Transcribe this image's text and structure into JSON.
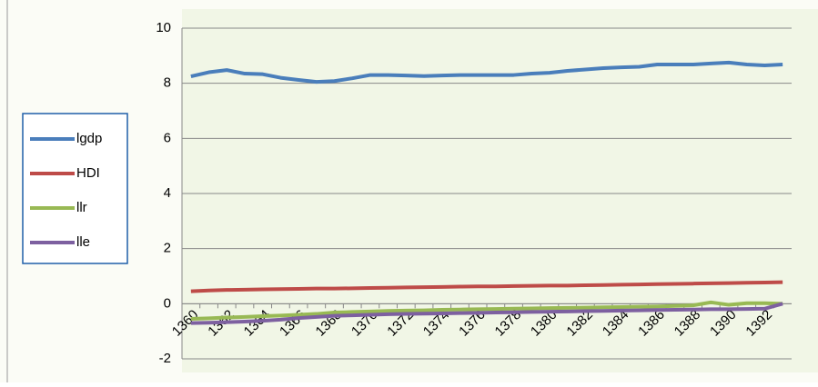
{
  "chart_data": {
    "type": "line",
    "categories": [
      "1360",
      null,
      "1362",
      null,
      "1364",
      null,
      "1366",
      null,
      "1368",
      null,
      "1370",
      null,
      "1372",
      null,
      "1374",
      null,
      "1376",
      null,
      "1378",
      null,
      "1380",
      null,
      "1382",
      null,
      "1384",
      null,
      "1386",
      null,
      "1388",
      null,
      "1390",
      null,
      "1392",
      null
    ],
    "series": [
      {
        "name": "lgdp",
        "color": "#4a7ebb",
        "values": [
          8.25,
          8.4,
          8.48,
          8.35,
          8.33,
          8.2,
          8.12,
          8.05,
          8.08,
          8.18,
          8.3,
          8.3,
          8.28,
          8.26,
          8.28,
          8.3,
          8.3,
          8.3,
          8.3,
          8.35,
          8.38,
          8.45,
          8.5,
          8.55,
          8.58,
          8.6,
          8.68,
          8.68,
          8.68,
          8.72,
          8.75,
          8.68,
          8.65,
          8.68
        ]
      },
      {
        "name": "HDI",
        "color": "#be4b48",
        "values": [
          0.45,
          0.48,
          0.5,
          0.51,
          0.52,
          0.53,
          0.54,
          0.55,
          0.55,
          0.56,
          0.57,
          0.58,
          0.59,
          0.6,
          0.61,
          0.62,
          0.63,
          0.63,
          0.64,
          0.65,
          0.66,
          0.66,
          0.67,
          0.68,
          0.69,
          0.7,
          0.71,
          0.72,
          0.73,
          0.74,
          0.75,
          0.76,
          0.77,
          0.78
        ]
      },
      {
        "name": "llr",
        "color": "#98b954",
        "values": [
          -0.55,
          -0.53,
          -0.5,
          -0.48,
          -0.45,
          -0.43,
          -0.4,
          -0.37,
          -0.32,
          -0.3,
          -0.28,
          -0.26,
          -0.25,
          -0.24,
          -0.22,
          -0.21,
          -0.2,
          -0.19,
          -0.18,
          -0.17,
          -0.16,
          -0.15,
          -0.14,
          -0.13,
          -0.12,
          -0.11,
          -0.1,
          -0.08,
          -0.06,
          0.05,
          -0.04,
          0.02,
          0.02,
          0.0
        ]
      },
      {
        "name": "lle",
        "color": "#7d60a0",
        "values": [
          -0.7,
          -0.69,
          -0.67,
          -0.65,
          -0.62,
          -0.58,
          -0.52,
          -0.48,
          -0.44,
          -0.42,
          -0.4,
          -0.38,
          -0.37,
          -0.36,
          -0.35,
          -0.34,
          -0.33,
          -0.32,
          -0.31,
          -0.3,
          -0.29,
          -0.28,
          -0.27,
          -0.26,
          -0.25,
          -0.24,
          -0.23,
          -0.22,
          -0.21,
          -0.2,
          -0.2,
          -0.19,
          -0.18,
          0.0
        ]
      }
    ],
    "ylim": [
      -2,
      10
    ],
    "yticks": [
      -2,
      0,
      2,
      4,
      6,
      8,
      10
    ],
    "grid": true
  }
}
